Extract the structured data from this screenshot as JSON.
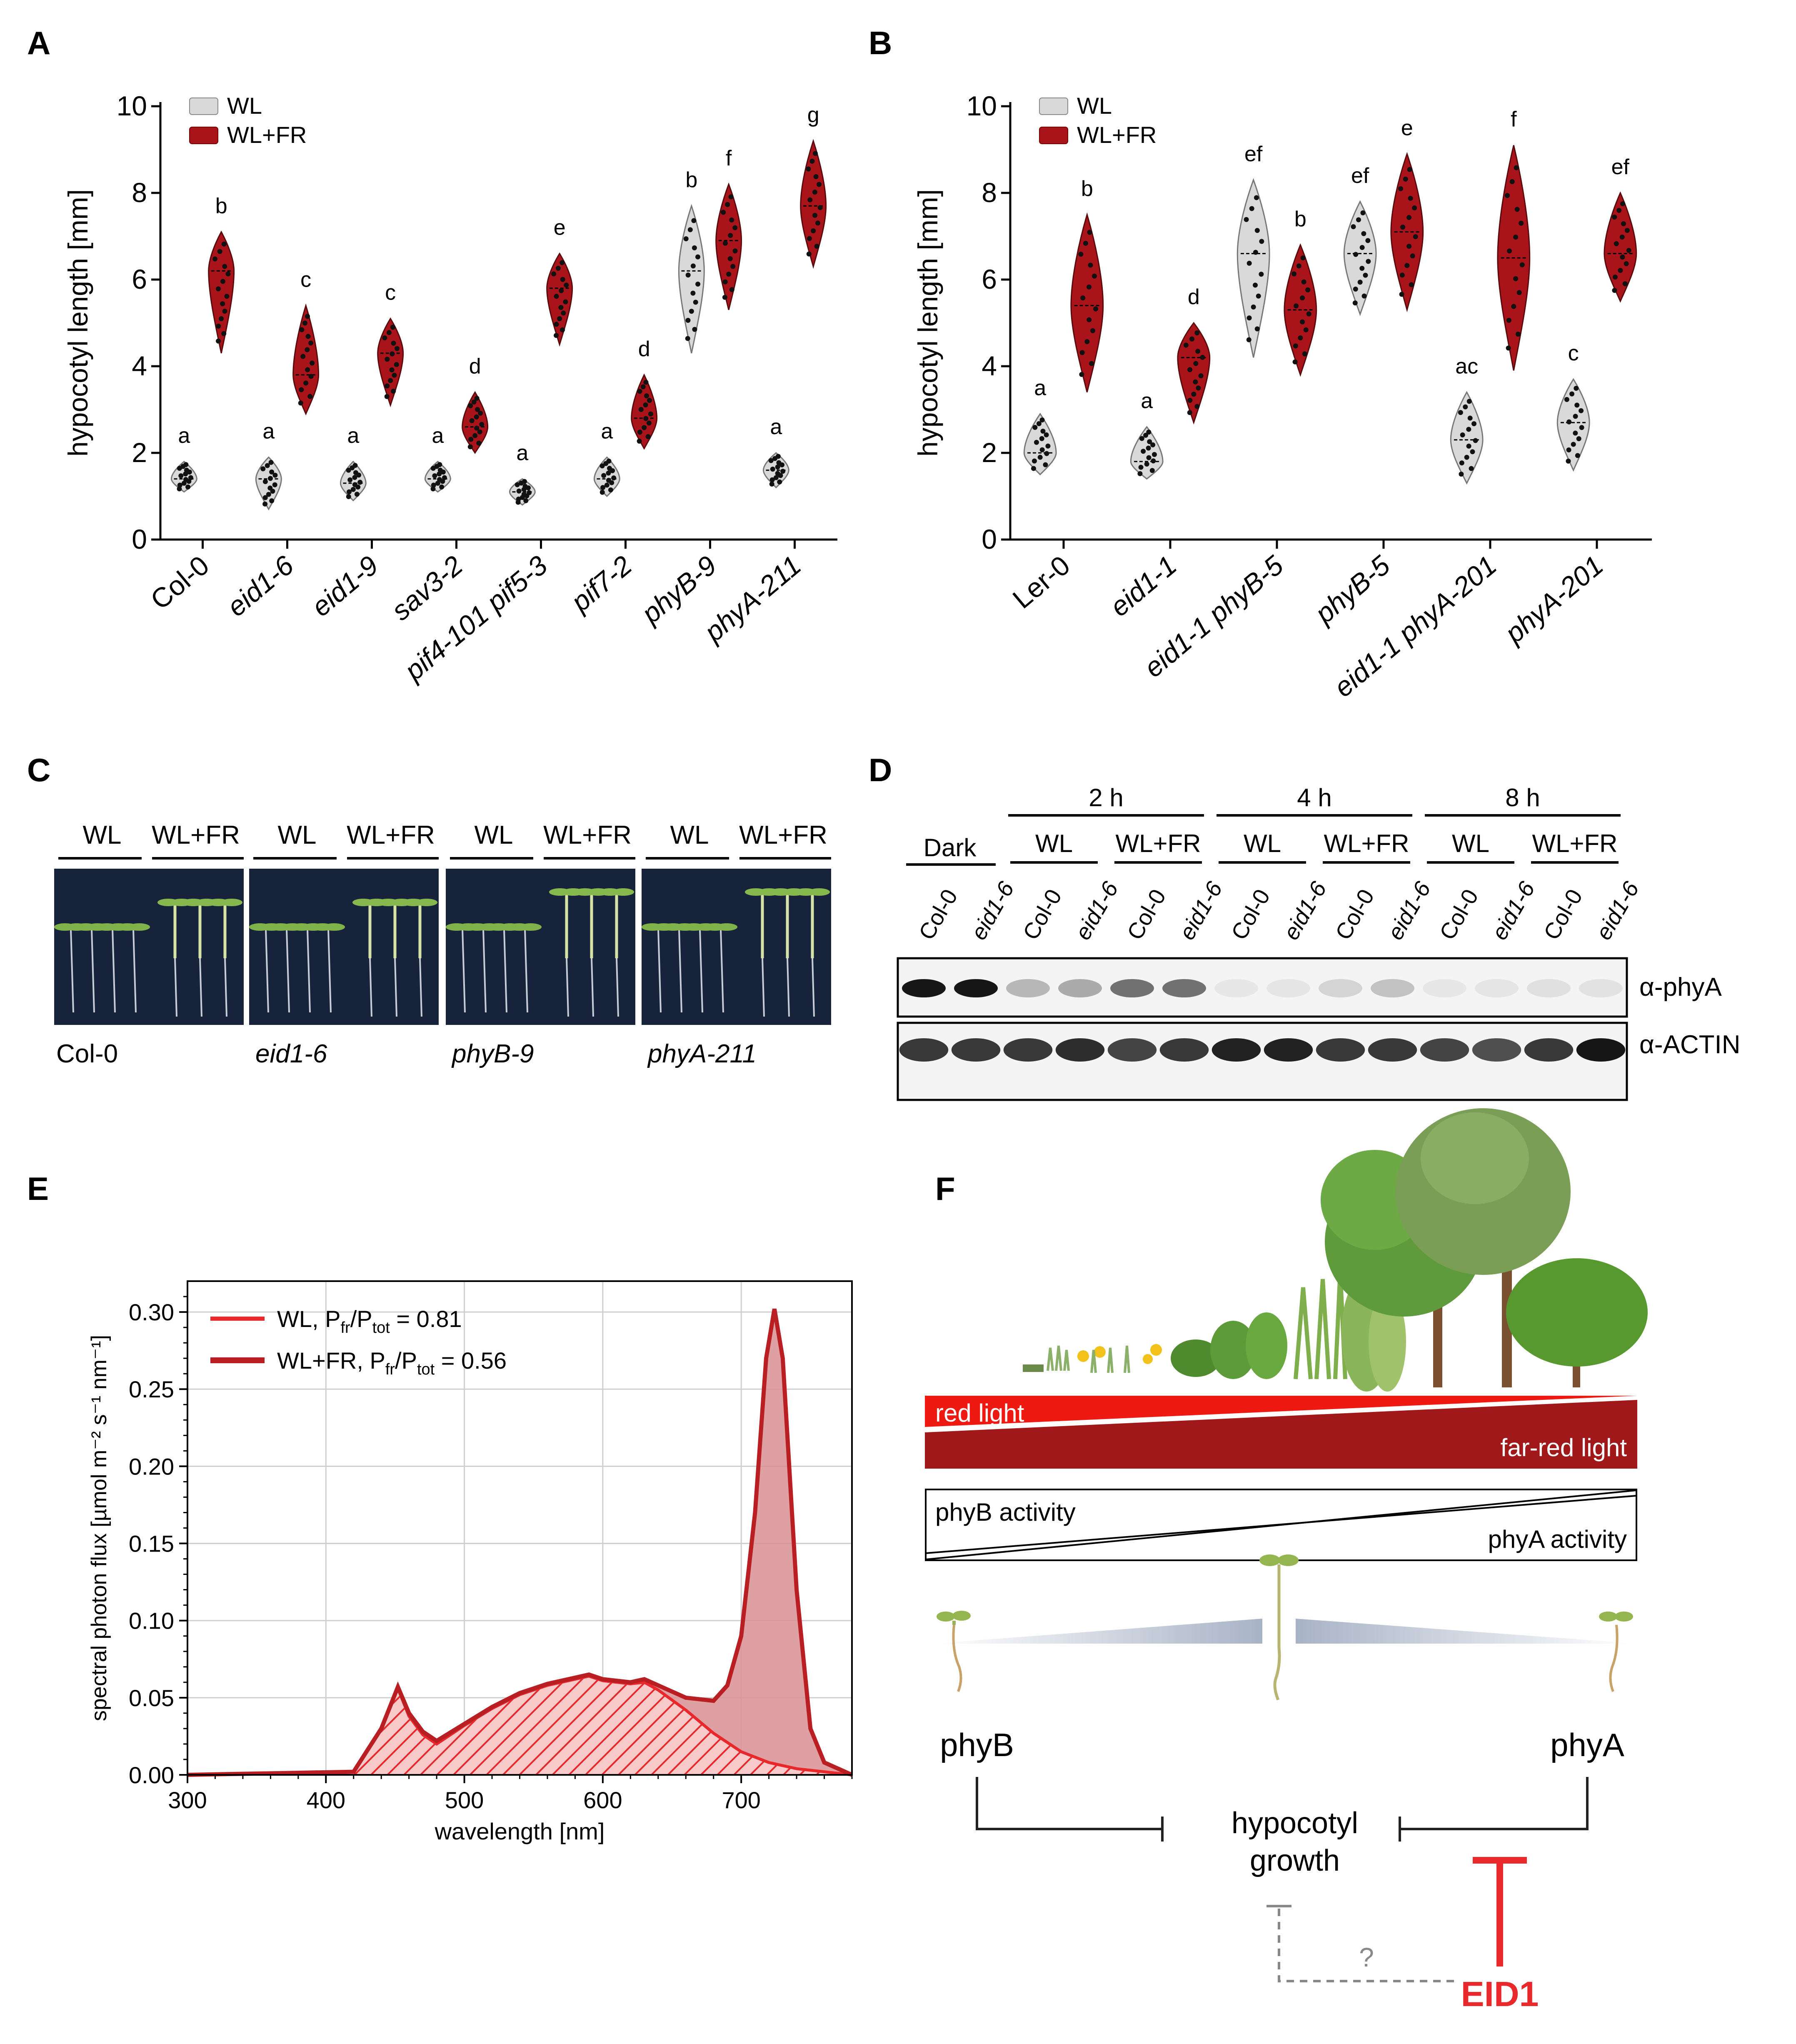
{
  "panels": {
    "A": {
      "label": "A",
      "ylabel": "hypocotyl length [mm]",
      "ylim": [
        0,
        10
      ],
      "yticks": [
        "0",
        "2",
        "4",
        "6",
        "8",
        "10"
      ],
      "legend": [
        "WL",
        "WL+FR"
      ],
      "genotypes": [
        "Col-0",
        "eid1-6",
        "eid1-9",
        "sav3-2",
        "pif4-101 pif5-3",
        "pif7-2",
        "phyB-9",
        "phyA-211"
      ],
      "wl": [
        {
          "center": 1.4,
          "min": 1.1,
          "max": 1.8,
          "letter": "a"
        },
        {
          "center": 1.4,
          "min": 0.7,
          "max": 1.9,
          "letter": "a"
        },
        {
          "center": 1.3,
          "min": 0.9,
          "max": 1.8,
          "letter": "a"
        },
        {
          "center": 1.4,
          "min": 1.1,
          "max": 1.8,
          "letter": "a"
        },
        {
          "center": 1.1,
          "min": 0.8,
          "max": 1.4,
          "letter": "a"
        },
        {
          "center": 1.4,
          "min": 1.0,
          "max": 1.9,
          "letter": "a"
        },
        {
          "center": 6.2,
          "min": 4.3,
          "max": 7.7,
          "letter": "b"
        },
        {
          "center": 1.6,
          "min": 1.2,
          "max": 2.0,
          "letter": "a"
        }
      ],
      "wlfr": [
        {
          "center": 6.2,
          "min": 4.3,
          "max": 7.1,
          "letter": "b"
        },
        {
          "center": 3.8,
          "min": 2.9,
          "max": 5.4,
          "letter": "c"
        },
        {
          "center": 4.3,
          "min": 3.1,
          "max": 5.1,
          "letter": "c"
        },
        {
          "center": 2.6,
          "min": 2.0,
          "max": 3.4,
          "letter": "d"
        },
        {
          "center": 5.8,
          "min": 4.5,
          "max": 6.6,
          "letter": "e"
        },
        {
          "center": 2.8,
          "min": 2.1,
          "max": 3.8,
          "letter": "d"
        },
        {
          "center": 6.9,
          "min": 5.3,
          "max": 8.2,
          "letter": "f"
        },
        {
          "center": 7.7,
          "min": 6.3,
          "max": 9.2,
          "letter": "g"
        }
      ]
    },
    "B": {
      "label": "B",
      "ylabel": "hypocotyl length [mm]",
      "ylim": [
        0,
        10
      ],
      "yticks": [
        "0",
        "2",
        "4",
        "6",
        "8",
        "10"
      ],
      "legend": [
        "WL",
        "WL+FR"
      ],
      "genotypes": [
        "Ler-0",
        "eid1-1",
        "eid1-1 phyB-5",
        "phyB-5",
        "eid1-1 phyA-201",
        "phyA-201"
      ],
      "wl": [
        {
          "center": 2.0,
          "min": 1.5,
          "max": 2.9,
          "letter": "a"
        },
        {
          "center": 1.8,
          "min": 1.4,
          "max": 2.6,
          "letter": "a"
        },
        {
          "center": 6.6,
          "min": 4.2,
          "max": 8.3,
          "letter": "ef"
        },
        {
          "center": 6.6,
          "min": 5.2,
          "max": 7.8,
          "letter": "ef"
        },
        {
          "center": 2.3,
          "min": 1.3,
          "max": 3.4,
          "letter": "ac"
        },
        {
          "center": 2.7,
          "min": 1.6,
          "max": 3.7,
          "letter": "c"
        }
      ],
      "wlfr": [
        {
          "center": 5.4,
          "min": 3.4,
          "max": 7.5,
          "letter": "b"
        },
        {
          "center": 4.2,
          "min": 2.7,
          "max": 5.0,
          "letter": "d"
        },
        {
          "center": 5.3,
          "min": 3.8,
          "max": 6.8,
          "letter": "b"
        },
        {
          "center": 7.1,
          "min": 5.3,
          "max": 8.9,
          "letter": "e"
        },
        {
          "center": 6.5,
          "min": 3.9,
          "max": 9.1,
          "letter": "f"
        },
        {
          "center": 6.6,
          "min": 5.5,
          "max": 8.0,
          "letter": "ef"
        }
      ]
    },
    "C": {
      "label": "C",
      "groups": [
        {
          "wl": "WL",
          "wlfr": "WL+FR",
          "name": "Col-0"
        },
        {
          "wl": "WL",
          "wlfr": "WL+FR",
          "name": "eid1-6"
        },
        {
          "wl": "WL",
          "wlfr": "WL+FR",
          "name": "phyB-9"
        },
        {
          "wl": "WL",
          "wlfr": "WL+FR",
          "name": "phyA-211"
        }
      ]
    },
    "D": {
      "label": "D",
      "dark": "Dark",
      "times": [
        "2 h",
        "4 h",
        "8 h"
      ],
      "conditions": [
        "WL",
        "WL+FR"
      ],
      "lanes": [
        "Col-0",
        "eid1-6",
        "Col-0",
        "eid1-6",
        "Col-0",
        "eid1-6",
        "Col-0",
        "eid1-6",
        "Col-0",
        "eid1-6",
        "Col-0",
        "eid1-6",
        "Col-0",
        "eid1-6"
      ],
      "blot1": "α-phyA",
      "blot2": "α-ACTIN",
      "phyA_intensity": [
        0.95,
        0.95,
        0.25,
        0.3,
        0.55,
        0.55,
        0.04,
        0.05,
        0.12,
        0.2,
        0.04,
        0.05,
        0.07,
        0.06
      ],
      "actin_intensity": [
        0.8,
        0.8,
        0.8,
        0.85,
        0.75,
        0.8,
        0.9,
        0.9,
        0.8,
        0.8,
        0.75,
        0.7,
        0.8,
        0.95
      ]
    },
    "E": {
      "label": "E"
    },
    "F": {
      "label": "F",
      "red_light": "red light",
      "far_red_light": "far-red light",
      "phyB_activity": "phyB activity",
      "phyA_activity": "phyA activity",
      "phyB": "phyB",
      "phyA": "phyA",
      "hypocotyl": "hypocotyl",
      "growth": "growth",
      "question": "?",
      "eid1": "EID1"
    }
  },
  "chart_data": [
    {
      "type": "line",
      "panel": "E",
      "xlabel": "wavelength [nm]",
      "ylabel": "spectral photon flux [µmol m⁻² s⁻¹ nm⁻¹]",
      "xlim": [
        300,
        780
      ],
      "ylim": [
        0,
        0.32
      ],
      "xticks": [
        "300",
        "400",
        "500",
        "600",
        "700"
      ],
      "yticks": [
        "0.00",
        "0.05",
        "0.10",
        "0.15",
        "0.20",
        "0.25",
        "0.30"
      ],
      "grid": true,
      "legend_position": "top-left",
      "colors": {
        "WL": "#e8282b",
        "WL+FR": "#b81e22"
      },
      "series": [
        {
          "name": "WL, Pfr/Ptot = 0.81",
          "legend_main": "WL, P",
          "legend_sub1": "fr",
          "legend_mid": "/P",
          "legend_sub2": "tot",
          "legend_end": " = 0.81",
          "x": [
            300,
            420,
            440,
            452,
            460,
            470,
            480,
            500,
            520,
            540,
            560,
            580,
            590,
            600,
            620,
            630,
            640,
            660,
            680,
            700,
            720,
            740,
            760,
            780
          ],
          "y": [
            0.0,
            0.002,
            0.03,
            0.056,
            0.038,
            0.026,
            0.02,
            0.032,
            0.043,
            0.052,
            0.058,
            0.062,
            0.064,
            0.061,
            0.059,
            0.06,
            0.055,
            0.042,
            0.027,
            0.015,
            0.008,
            0.004,
            0.002,
            0.0
          ]
        },
        {
          "name": "WL+FR, Pfr/Ptot = 0.56",
          "legend_main": "WL+FR, P",
          "legend_sub1": "fr",
          "legend_mid": "/P",
          "legend_sub2": "tot",
          "legend_end": " = 0.56",
          "x": [
            300,
            420,
            440,
            452,
            460,
            470,
            480,
            500,
            520,
            540,
            560,
            580,
            590,
            600,
            620,
            630,
            640,
            660,
            680,
            690,
            700,
            710,
            718,
            724,
            730,
            740,
            750,
            760,
            780
          ],
          "y": [
            0.0,
            0.002,
            0.03,
            0.057,
            0.04,
            0.028,
            0.022,
            0.033,
            0.044,
            0.053,
            0.059,
            0.063,
            0.065,
            0.062,
            0.06,
            0.062,
            0.058,
            0.05,
            0.048,
            0.058,
            0.09,
            0.17,
            0.27,
            0.302,
            0.27,
            0.12,
            0.03,
            0.008,
            0.0
          ]
        }
      ]
    }
  ]
}
